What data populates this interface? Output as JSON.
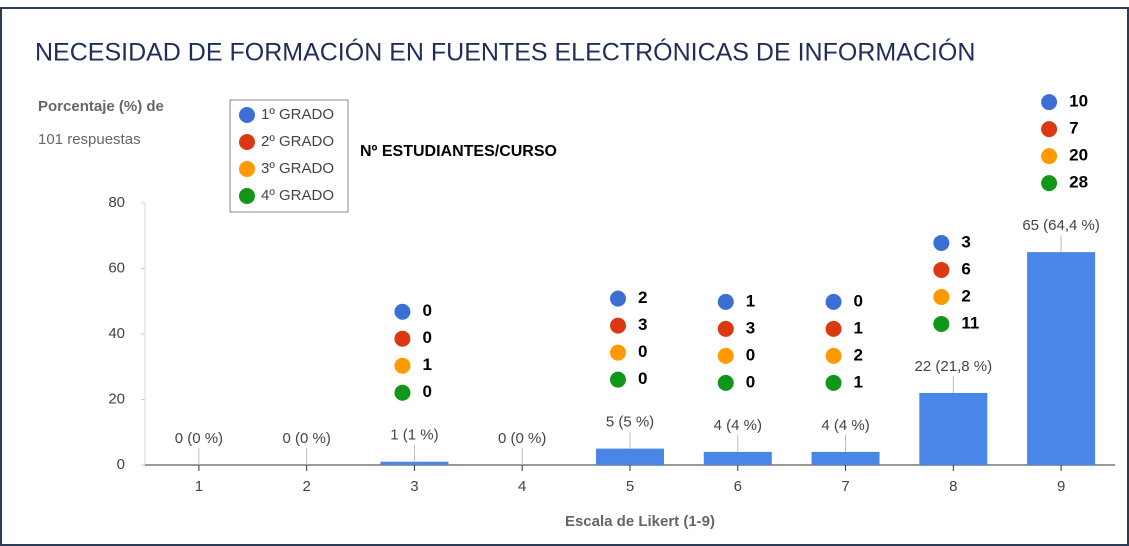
{
  "chart_data": {
    "type": "bar",
    "title": "NECESIDAD DE FORMACIÓN EN FUENTES ELECTRÓNICAS DE INFORMACIÓN",
    "y_label": [
      "Porcentaje (%) de",
      "101 respuestas"
    ],
    "x_label": "Escala de Likert (1-9)",
    "annotation": "Nº ESTUDIANTES/CURSO",
    "categories": [
      "1",
      "2",
      "3",
      "4",
      "5",
      "6",
      "7",
      "8",
      "9"
    ],
    "values": [
      0,
      0,
      1,
      0,
      5,
      4,
      4,
      22,
      65
    ],
    "value_labels": [
      "0 (0 %)",
      "0 (0 %)",
      "1 (1 %)",
      "0 (0 %)",
      "5 (5 %)",
      "4 (4 %)",
      "4 (4 %)",
      "22 (21,8 %)",
      "65 (64,4 %)"
    ],
    "color": "#4a86e8",
    "ylim": [
      0,
      80
    ],
    "yticks": [
      0,
      20,
      40,
      60,
      80
    ],
    "legend": "top-left",
    "breakdown": [
      {
        "name": "1º GRADO",
        "color": "#3c6fd6",
        "values": [
          null,
          null,
          0,
          null,
          2,
          1,
          0,
          3,
          10
        ]
      },
      {
        "name": "2º GRADO",
        "color": "#dc3912",
        "values": [
          null,
          null,
          0,
          null,
          3,
          3,
          1,
          6,
          7
        ]
      },
      {
        "name": "3º GRADO",
        "color": "#ff9900",
        "values": [
          null,
          null,
          1,
          null,
          0,
          0,
          2,
          2,
          20
        ]
      },
      {
        "name": "4º GRADO",
        "color": "#109618",
        "values": [
          null,
          null,
          0,
          null,
          0,
          0,
          1,
          11,
          28
        ]
      }
    ]
  }
}
